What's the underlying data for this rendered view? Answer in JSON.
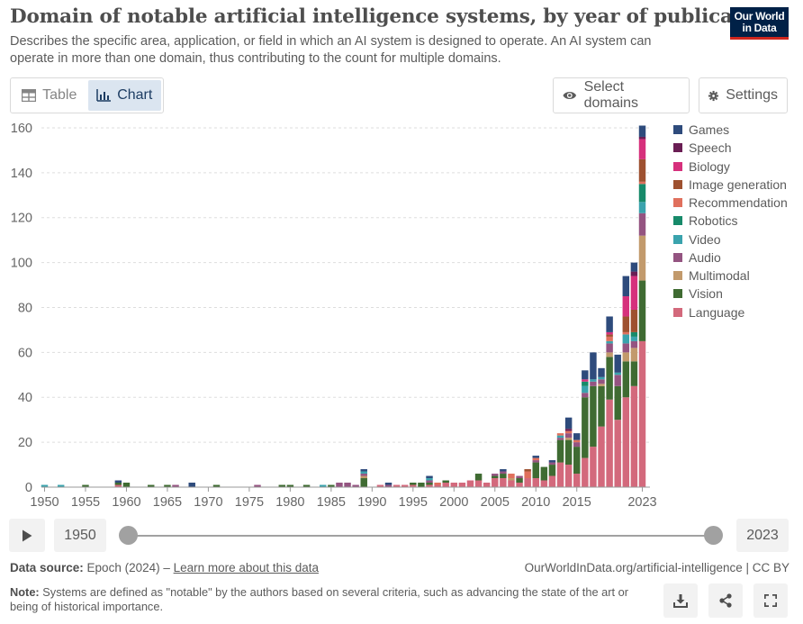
{
  "header": {
    "title": "Domain of notable artificial intelligence systems, by year of publication",
    "subtitle": "Describes the specific area, application, or field in which an AI system is designed to operate. An AI system can operate in more than one domain, thus contributing to the count for multiple domains.",
    "logo_line1": "Our World",
    "logo_line2": "in Data"
  },
  "tabs": [
    {
      "label": "Table",
      "icon": "table-icon",
      "active": false
    },
    {
      "label": "Chart",
      "icon": "chart-icon",
      "active": true
    }
  ],
  "controls": {
    "select_label": "Select domains",
    "settings_label": "Settings"
  },
  "timeline": {
    "start_year": "1950",
    "end_year": "2023"
  },
  "footer": {
    "source_prefix": "Data source:",
    "source_text": "Epoch (2024) – ",
    "source_link": "Learn more about this data",
    "source_right": "OurWorldInData.org/artificial-intelligence | CC BY",
    "note_prefix": "Note:",
    "note_text": "Systems are defined as \"notable\" by the authors based on several criteria, such as advancing the state of the art or being of historical importance."
  },
  "colors": {
    "Games": "#2e4b7c",
    "Speech": "#6a1e54",
    "Biology": "#d6307c",
    "Image generation": "#9e5130",
    "Recommendation": "#e0705d",
    "Robotics": "#178a6a",
    "Video": "#3aa3ad",
    "Audio": "#945481",
    "Multimodal": "#c29a6c",
    "Vision": "#3f6b32",
    "Language": "#d3697c"
  },
  "chart_data": {
    "type": "bar",
    "stacked": true,
    "x_tick_labels": [
      "1950",
      "1955",
      "1960",
      "1965",
      "1970",
      "1975",
      "1980",
      "1985",
      "1990",
      "1995",
      "2000",
      "2005",
      "2010",
      "2015",
      "2023"
    ],
    "y_ticks": [
      0,
      20,
      40,
      60,
      80,
      100,
      120,
      140,
      160
    ],
    "ylim": [
      0,
      162
    ],
    "xlim": [
      1950,
      2023
    ],
    "legend": [
      "Games",
      "Speech",
      "Biology",
      "Image generation",
      "Recommendation",
      "Robotics",
      "Video",
      "Audio",
      "Multimodal",
      "Vision",
      "Language"
    ],
    "legend_position": "right",
    "grid": true,
    "data": [
      {
        "year": 1950,
        "Video": 1
      },
      {
        "year": 1952,
        "Video": 1
      },
      {
        "year": 1955,
        "Vision": 1
      },
      {
        "year": 1959,
        "Vision": 1,
        "Language": 1,
        "Games": 1
      },
      {
        "year": 1960,
        "Vision": 2
      },
      {
        "year": 1963,
        "Vision": 1
      },
      {
        "year": 1965,
        "Vision": 1
      },
      {
        "year": 1966,
        "Audio": 1
      },
      {
        "year": 1968,
        "Games": 2
      },
      {
        "year": 1971,
        "Vision": 1
      },
      {
        "year": 1976,
        "Audio": 1
      },
      {
        "year": 1979,
        "Vision": 1
      },
      {
        "year": 1980,
        "Vision": 1
      },
      {
        "year": 1982,
        "Vision": 1
      },
      {
        "year": 1984,
        "Video": 1
      },
      {
        "year": 1985,
        "Vision": 1
      },
      {
        "year": 1986,
        "Audio": 2
      },
      {
        "year": 1987,
        "Audio": 2
      },
      {
        "year": 1988,
        "Audio": 1
      },
      {
        "year": 1989,
        "Vision": 4,
        "Multimodal": 1,
        "Audio": 1,
        "Video": 1,
        "Games": 1
      },
      {
        "year": 1991,
        "Language": 1
      },
      {
        "year": 1992,
        "Audio": 1,
        "Games": 1
      },
      {
        "year": 1993,
        "Language": 1
      },
      {
        "year": 1994,
        "Language": 1
      },
      {
        "year": 1995,
        "Vision": 1,
        "Language": 1
      },
      {
        "year": 1996,
        "Vision": 2
      },
      {
        "year": 1997,
        "Vision": 1,
        "Language": 1,
        "Video": 1,
        "Audio": 1,
        "Games": 1
      },
      {
        "year": 1998,
        "Language": 1,
        "Recommendation": 1
      },
      {
        "year": 1999,
        "Vision": 1,
        "Language": 2
      },
      {
        "year": 2000,
        "Language": 2
      },
      {
        "year": 2001,
        "Language": 2
      },
      {
        "year": 2002,
        "Language": 3
      },
      {
        "year": 2003,
        "Vision": 3,
        "Language": 3
      },
      {
        "year": 2004,
        "Language": 2
      },
      {
        "year": 2005,
        "Language": 4,
        "Vision": 1,
        "Audio": 1
      },
      {
        "year": 2006,
        "Language": 4,
        "Vision": 2,
        "Games": 1,
        "Audio": 1
      },
      {
        "year": 2007,
        "Language": 3,
        "Multimodal": 1,
        "Recommendation": 2
      },
      {
        "year": 2008,
        "Language": 2,
        "Vision": 2,
        "Audio": 1
      },
      {
        "year": 2009,
        "Language": 4,
        "Recommendation": 3,
        "Image generation": 1
      },
      {
        "year": 2010,
        "Language": 4,
        "Vision": 7,
        "Recommendation": 1,
        "Audio": 1,
        "Games": 1
      },
      {
        "year": 2011,
        "Language": 3,
        "Vision": 6
      },
      {
        "year": 2012,
        "Language": 5,
        "Vision": 5,
        "Audio": 1,
        "Games": 1
      },
      {
        "year": 2013,
        "Language": 11,
        "Vision": 10,
        "Recommendation": 1,
        "Video": 1,
        "Audio": 1
      },
      {
        "year": 2014,
        "Language": 10,
        "Vision": 11,
        "Multimodal": 1,
        "Recommendation": 1,
        "Audio": 2,
        "Speech": 1,
        "Games": 5
      },
      {
        "year": 2015,
        "Language": 6,
        "Vision": 12,
        "Recommendation": 1,
        "Audio": 2,
        "Games": 3
      },
      {
        "year": 2016,
        "Language": 13,
        "Vision": 27,
        "Video": 3,
        "Robotics": 2,
        "Biology": 1,
        "Audio": 2,
        "Games": 4
      },
      {
        "year": 2017,
        "Language": 18,
        "Vision": 27,
        "Video": 1,
        "Audio": 2,
        "Games": 12
      },
      {
        "year": 2018,
        "Language": 27,
        "Vision": 18,
        "Multimodal": 1,
        "Audio": 2,
        "Video": 1,
        "Games": 4
      },
      {
        "year": 2019,
        "Language": 39,
        "Vision": 19,
        "Multimodal": 2,
        "Audio": 4,
        "Video": 1,
        "Recommendation": 2,
        "Image generation": 1,
        "Biology": 1,
        "Games": 7
      },
      {
        "year": 2020,
        "Language": 30,
        "Vision": 15,
        "Audio": 5,
        "Video": 1,
        "Games": 8
      },
      {
        "year": 2021,
        "Language": 40,
        "Vision": 16,
        "Audio": 4,
        "Multimodal": 4,
        "Video": 4,
        "Recommendation": 1,
        "Image generation": 7,
        "Biology": 9,
        "Games": 9
      },
      {
        "year": 2022,
        "Language": 45,
        "Vision": 11,
        "Multimodal": 6,
        "Audio": 3,
        "Video": 2,
        "Robotics": 2,
        "Image generation": 10,
        "Biology": 15,
        "Speech": 2,
        "Games": 4
      },
      {
        "year": 2023,
        "Language": 65,
        "Vision": 27,
        "Multimodal": 20,
        "Audio": 10,
        "Video": 5,
        "Robotics": 8,
        "Recommendation": 1,
        "Image generation": 10,
        "Biology": 9,
        "Speech": 1,
        "Games": 5
      }
    ]
  }
}
